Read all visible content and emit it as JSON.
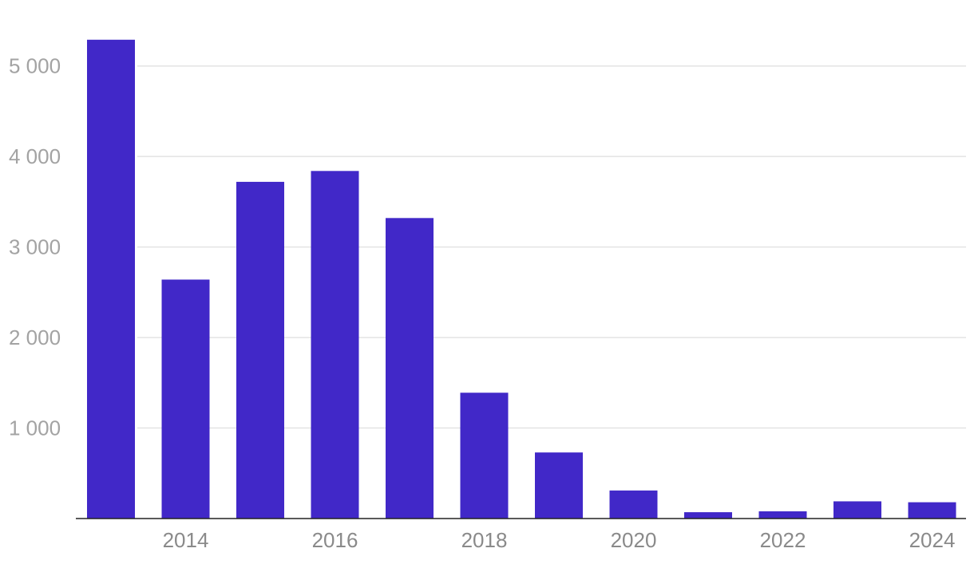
{
  "chart_data": {
    "type": "bar",
    "title": "",
    "xlabel": "",
    "ylabel": "",
    "categories": [
      "2013",
      "2014",
      "2015",
      "2016",
      "2017",
      "2018",
      "2019",
      "2020",
      "2021",
      "2022",
      "2023",
      "2024"
    ],
    "values": [
      5290,
      2640,
      3720,
      3840,
      3320,
      1390,
      730,
      310,
      70,
      80,
      190,
      180
    ],
    "x_tick_labels": [
      "2014",
      "2016",
      "2018",
      "2020",
      "2022",
      "2024"
    ],
    "y_ticks": [
      1000,
      2000,
      3000,
      4000,
      5000
    ],
    "y_tick_labels": [
      "1 000",
      "2 000",
      "3 000",
      "4 000",
      "5 000"
    ],
    "ylim": [
      0,
      5300
    ],
    "grid": true,
    "legend": "none",
    "colors": {
      "bar": "#4128c8",
      "grid": "#e3e3e3",
      "axis": "#222222",
      "y_tick_text": "#a3a3a3",
      "x_tick_text": "#8a8a8a"
    }
  }
}
